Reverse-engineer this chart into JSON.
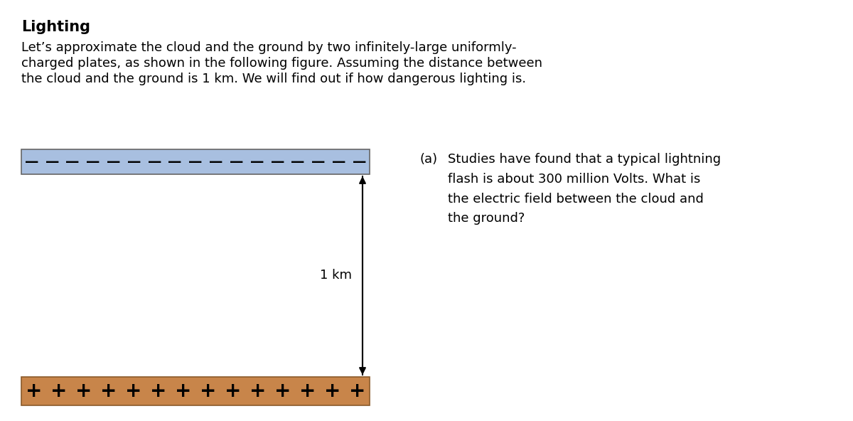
{
  "title": "Lighting",
  "intro_line1": "Let’s approximate the cloud and the ground by two infinitely-large uniformly-",
  "intro_line2": "charged plates, as shown in the following figure. Assuming the distance between",
  "intro_line3": "the cloud and the ground is 1 km. We will find out if how dangerous lighting is.",
  "question_label": "(a)",
  "question_text": "Studies have found that a typical lightning\nflash is about 300 million Volts. What is\nthe electric field between the cloud and\nthe ground?",
  "distance_label": "1 km",
  "cloud_color": "#a8bfe0",
  "cloud_border": "#666666",
  "ground_color": "#c8854a",
  "ground_border": "#8a5a2a",
  "minus_color": "#000000",
  "plus_color": "#000000",
  "arrow_color": "#000000",
  "bg_color": "#ffffff",
  "num_minus": 17,
  "num_plus": 14,
  "title_fontsize": 15,
  "intro_fontsize": 13,
  "question_fontsize": 13,
  "dist_fontsize": 13
}
